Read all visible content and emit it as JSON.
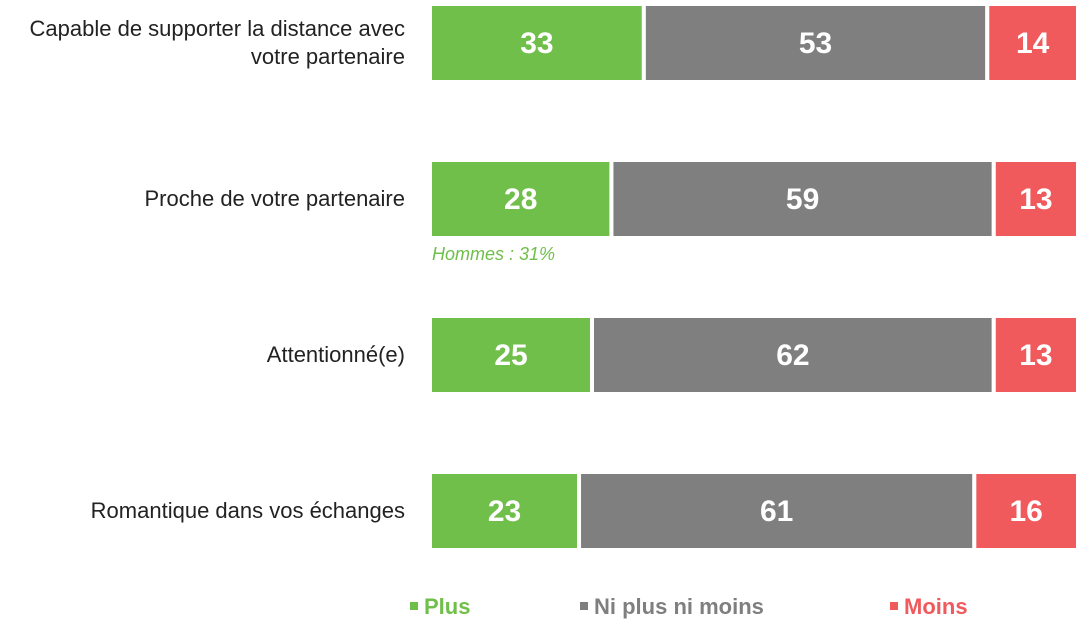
{
  "chart_data": {
    "type": "stacked-bar-horizontal",
    "categories": [
      "Capable de supporter la distance avec votre partenaire",
      "Proche de votre partenaire",
      "Attentionné(e)",
      "Romantique dans vos échanges"
    ],
    "series": [
      {
        "name": "Plus",
        "color": "#70bf4b",
        "values": [
          33,
          28,
          25,
          23
        ]
      },
      {
        "name": "Ni plus ni moins",
        "color": "#7f7f7f",
        "values": [
          53,
          59,
          62,
          61
        ]
      },
      {
        "name": "Moins",
        "color": "#f05a5c",
        "values": [
          14,
          13,
          13,
          16
        ]
      }
    ],
    "xlim": [
      0,
      100
    ],
    "annotations": [
      {
        "text": "Hommes : 31%",
        "category": 1
      }
    ]
  }
}
